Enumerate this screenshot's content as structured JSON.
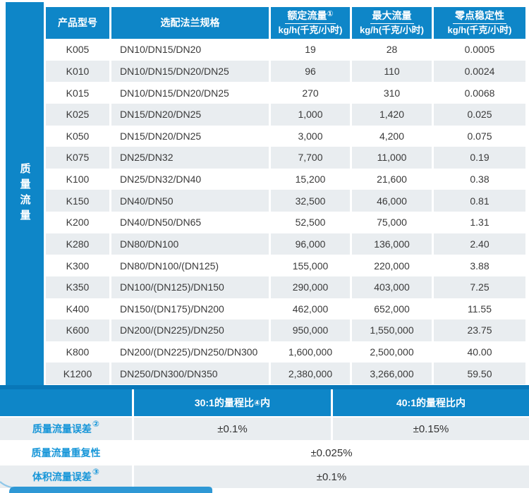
{
  "colors": {
    "primary_blue": "#0e86c8",
    "divider_blue": "#0877b8",
    "alt_row_gray": "#e9edf0",
    "label_text_blue": "#1796d8"
  },
  "sidebar": {
    "label": "质量流量"
  },
  "table": {
    "headers": [
      {
        "label": "产品型号"
      },
      {
        "label": "选配法兰规格"
      },
      {
        "title": "额定流量",
        "sup": "①",
        "unit": "kg/h(千克/小时)"
      },
      {
        "title": "最大流量",
        "sup": "",
        "unit": "kg/h(千克/小时)"
      },
      {
        "title": "零点稳定性",
        "sup": "",
        "unit": "kg/h(千克/小时)"
      }
    ],
    "rows": [
      {
        "model": "K005",
        "flange": "DN10/DN15/DN20",
        "rated": "19",
        "max": "28",
        "zero": "0.0005"
      },
      {
        "model": "K010",
        "flange": "DN10/DN15/DN20/DN25",
        "rated": "96",
        "max": "110",
        "zero": "0.0024"
      },
      {
        "model": "K015",
        "flange": "DN10/DN15/DN20/DN25",
        "rated": "270",
        "max": "310",
        "zero": "0.0068"
      },
      {
        "model": "K025",
        "flange": "DN15/DN20/DN25",
        "rated": "1,000",
        "max": "1,420",
        "zero": "0.025"
      },
      {
        "model": "K050",
        "flange": "DN15/DN20/DN25",
        "rated": "3,000",
        "max": "4,200",
        "zero": "0.075"
      },
      {
        "model": "K075",
        "flange": "DN25/DN32",
        "rated": "7,700",
        "max": "11,000",
        "zero": "0.19"
      },
      {
        "model": "K100",
        "flange": "DN25/DN32/DN40",
        "rated": "15,200",
        "max": "21,600",
        "zero": "0.38"
      },
      {
        "model": "K150",
        "flange": "DN40/DN50",
        "rated": "32,500",
        "max": "46,000",
        "zero": "0.81"
      },
      {
        "model": "K200",
        "flange": "DN40/DN50/DN65",
        "rated": "52,500",
        "max": "75,000",
        "zero": "1.31"
      },
      {
        "model": "K280",
        "flange": "DN80/DN100",
        "rated": "96,000",
        "max": "136,000",
        "zero": "2.40"
      },
      {
        "model": "K300",
        "flange": "DN80/DN100/(DN125)",
        "rated": "155,000",
        "max": "220,000",
        "zero": "3.88"
      },
      {
        "model": "K350",
        "flange": "DN100/(DN125)/DN150",
        "rated": "290,000",
        "max": "403,000",
        "zero": "7.25"
      },
      {
        "model": "K400",
        "flange": "DN150/(DN175)/DN200",
        "rated": "462,000",
        "max": "652,000",
        "zero": "11.55"
      },
      {
        "model": "K600",
        "flange": "DN200/(DN225)/DN250",
        "rated": "950,000",
        "max": "1,550,000",
        "zero": "23.75"
      },
      {
        "model": "K800",
        "flange": "DN200/(DN225)/DN250/DN300",
        "rated": "1,600,000",
        "max": "2,500,000",
        "zero": "40.00"
      },
      {
        "model": "K1200",
        "flange": "DN250/DN300/DN350",
        "rated": "2,380,000",
        "max": "3,266,000",
        "zero": "59.50"
      }
    ]
  },
  "bottom": {
    "range_headers": [
      {
        "pre": "30:1的量程比",
        "sup": "④",
        "post": "内"
      },
      {
        "pre": "40:1的量程比内",
        "sup": "",
        "post": ""
      }
    ],
    "rows": [
      {
        "label": "质量流量误差",
        "sup": "②",
        "values": [
          "±0.1%",
          "±0.15%"
        ]
      },
      {
        "label": "质量流量重复性",
        "sup": "",
        "values": [
          "±0.025%"
        ]
      },
      {
        "label": "体积流量误差",
        "sup": "③",
        "values": [
          "±0.1%"
        ]
      }
    ]
  }
}
